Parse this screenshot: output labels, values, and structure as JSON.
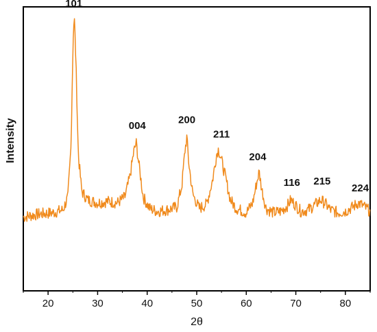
{
  "chart_data": {
    "type": "line",
    "title": "",
    "xlabel": "2θ",
    "ylabel": "Intensity",
    "xlim": [
      15,
      85
    ],
    "ylim": [
      0,
      100
    ],
    "xticks": [
      20,
      30,
      40,
      50,
      60,
      70,
      80
    ],
    "grid": false,
    "legend": "none",
    "line_color": "#f08a1c",
    "series": [
      {
        "x": [
          15,
          18,
          21,
          23,
          24,
          24.6,
          25.1,
          25.3,
          25.6,
          26.1,
          26.8,
          28,
          30,
          32,
          34,
          35.5,
          36.5,
          37.3,
          37.8,
          38.3,
          39.2,
          40.5,
          42,
          44,
          46,
          47,
          47.6,
          48,
          48.4,
          49.2,
          50.5,
          52,
          53.2,
          54,
          54.4,
          55,
          55.8,
          56.8,
          58,
          60,
          61.3,
          62.1,
          62.6,
          63.1,
          64,
          65.5,
          67,
          68.3,
          69,
          69.8,
          71,
          72.5,
          74,
          75,
          75.8,
          77,
          78.5,
          80,
          81.5,
          82.6,
          83.5,
          85
        ],
        "y": [
          26,
          27,
          27.5,
          28.5,
          33,
          50,
          92,
          96,
          82,
          48,
          35,
          32,
          31,
          31.5,
          31,
          33,
          40,
          49,
          52,
          45,
          33,
          29,
          28,
          28.5,
          29.5,
          37,
          49,
          54,
          45,
          34,
          29,
          30.5,
          39,
          48,
          50,
          46,
          40,
          32,
          29,
          27.5,
          31,
          38,
          42,
          36,
          29,
          27.5,
          28,
          30,
          32,
          30.5,
          28,
          28.5,
          30.5,
          32,
          31,
          28.5,
          27.5,
          28,
          29.5,
          31,
          30,
          28
        ]
      }
    ],
    "annotations": [
      {
        "text": "101",
        "x": 25.2,
        "y": 100
      },
      {
        "text": "004",
        "x": 38.0,
        "y": 57
      },
      {
        "text": "200",
        "x": 48.0,
        "y": 59
      },
      {
        "text": "211",
        "x": 55.0,
        "y": 54
      },
      {
        "text": "204",
        "x": 62.3,
        "y": 46
      },
      {
        "text": "116",
        "x": 69.2,
        "y": 37
      },
      {
        "text": "215",
        "x": 75.3,
        "y": 37.5
      },
      {
        "text": "224",
        "x": 83.0,
        "y": 35
      }
    ]
  }
}
